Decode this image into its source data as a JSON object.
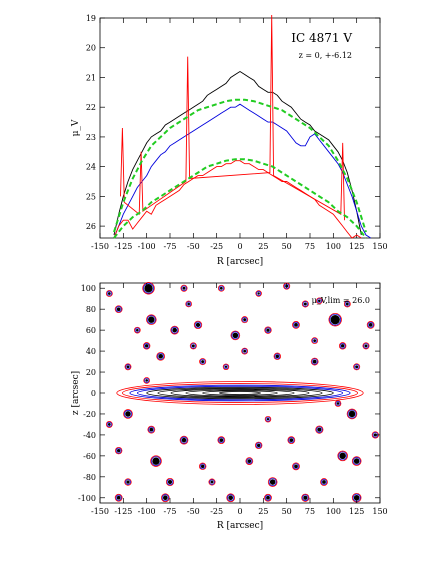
{
  "chart_data": [
    {
      "type": "line",
      "title": "IC 4871 V",
      "annotation": "z = 0, +-6.12",
      "xlabel": "R [arcsec]",
      "ylabel": "μ_V",
      "xlim": [
        -150,
        150
      ],
      "ylim": [
        26.4,
        19
      ],
      "y_inverted": true,
      "x_ticks": [
        -150,
        -125,
        -100,
        -75,
        -50,
        -25,
        0,
        25,
        50,
        75,
        100,
        125,
        150
      ],
      "y_ticks": [
        19,
        20,
        21,
        22,
        23,
        24,
        25,
        26
      ],
      "series": [
        {
          "color": "#000000",
          "x": [
            -135,
            -130,
            -125,
            -120,
            -115,
            -110,
            -105,
            -100,
            -95,
            -90,
            -85,
            -80,
            -75,
            -70,
            -65,
            -60,
            -55,
            -50,
            -45,
            -40,
            -35,
            -30,
            -25,
            -20,
            -15,
            -10,
            -5,
            0,
            5,
            10,
            15,
            20,
            25,
            30,
            35,
            40,
            45,
            50,
            55,
            60,
            65,
            70,
            75,
            80,
            85,
            90,
            95,
            100,
            105,
            110,
            115,
            120,
            125,
            130
          ],
          "y": [
            26.3,
            25.6,
            25.0,
            24.5,
            24.1,
            23.8,
            23.5,
            23.2,
            23.0,
            22.9,
            22.8,
            22.6,
            22.5,
            22.4,
            22.3,
            22.2,
            22.1,
            22.0,
            21.9,
            21.8,
            21.6,
            21.5,
            21.4,
            21.3,
            21.2,
            21.0,
            20.9,
            20.8,
            20.9,
            21.0,
            21.1,
            21.3,
            21.4,
            21.5,
            21.5,
            21.6,
            21.8,
            21.9,
            22.0,
            22.2,
            22.4,
            22.5,
            22.6,
            22.8,
            22.9,
            23.0,
            23.1,
            23.3,
            23.5,
            23.8,
            24.2,
            24.8,
            25.5,
            26.3
          ]
        },
        {
          "color": "#0000dd",
          "x": [
            -135,
            -130,
            -125,
            -120,
            -115,
            -110,
            -105,
            -100,
            -95,
            -90,
            -85,
            -80,
            -75,
            -70,
            -65,
            -60,
            -55,
            -50,
            -45,
            -40,
            -35,
            -30,
            -25,
            -20,
            -15,
            -10,
            -5,
            0,
            5,
            10,
            15,
            20,
            25,
            30,
            35,
            40,
            45,
            50,
            55,
            60,
            65,
            70,
            75,
            80,
            85,
            90,
            95,
            100,
            105,
            110,
            115,
            120,
            125,
            130,
            135,
            140
          ],
          "y": [
            26.4,
            26.0,
            25.6,
            25.3,
            25.0,
            24.7,
            24.5,
            24.3,
            24.0,
            23.8,
            23.6,
            23.5,
            23.3,
            23.2,
            23.1,
            23.0,
            22.9,
            22.8,
            22.7,
            22.6,
            22.5,
            22.4,
            22.3,
            22.2,
            22.1,
            22.0,
            22.0,
            21.9,
            22.0,
            22.1,
            22.2,
            22.3,
            22.4,
            22.5,
            22.5,
            22.6,
            22.7,
            22.8,
            23.0,
            23.2,
            23.3,
            23.3,
            23.0,
            22.9,
            23.1,
            23.3,
            23.5,
            23.7,
            23.9,
            24.2,
            24.6,
            25.0,
            25.5,
            26.0,
            26.3,
            26.4
          ]
        },
        {
          "color": "#ff0000",
          "x": [
            -135,
            -130,
            -125,
            -120,
            -115,
            -110,
            -105,
            -100,
            -95,
            -90,
            -85,
            -80,
            -75,
            -70,
            -65,
            -60,
            -55,
            -50,
            -45,
            -40,
            -35,
            -30,
            -25,
            -20,
            -15,
            -10,
            -5,
            0,
            5,
            10,
            15,
            20,
            25,
            30,
            35,
            40,
            45,
            50,
            55,
            60,
            65,
            70,
            75,
            80,
            85,
            90,
            95,
            100,
            105,
            110,
            115,
            120,
            125,
            130
          ],
          "y": [
            26.4,
            26.0,
            25.8,
            25.8,
            26.1,
            25.9,
            25.7,
            25.5,
            25.6,
            25.3,
            25.2,
            25.1,
            25.0,
            24.9,
            24.8,
            24.6,
            24.5,
            24.4,
            24.3,
            24.3,
            24.2,
            24.1,
            24.0,
            24.0,
            23.9,
            23.9,
            23.8,
            23.8,
            23.9,
            23.9,
            24.0,
            24.1,
            24.1,
            24.2,
            24.3,
            24.4,
            24.5,
            24.5,
            24.6,
            24.7,
            24.8,
            24.9,
            25.0,
            25.1,
            25.3,
            25.4,
            25.5,
            25.6,
            25.8,
            26.0,
            26.2,
            26.4,
            26.3,
            26.4
          ]
        },
        {
          "color": "#ff0000",
          "x": [
            -128,
            -126,
            -124,
            -108,
            -106,
            -104,
            -58,
            -56,
            -54,
            32,
            34,
            36,
            108,
            110,
            112
          ],
          "y": [
            25.0,
            22.7,
            25.2,
            25.6,
            23.5,
            25.5,
            24.5,
            20.3,
            24.4,
            24.2,
            18.9,
            24.3,
            25.6,
            23.2,
            25.8
          ]
        },
        {
          "color": "#22cc22",
          "dashed": true,
          "x": [
            -135,
            -125,
            -115,
            -105,
            -95,
            -85,
            -75,
            -65,
            -55,
            -45,
            -35,
            -25,
            -15,
            -5,
            0,
            5,
            15,
            25,
            35,
            45,
            55,
            65,
            75,
            85,
            95,
            105,
            115,
            125,
            135
          ],
          "y": [
            26.2,
            25.2,
            24.4,
            23.8,
            23.3,
            23.0,
            22.7,
            22.5,
            22.3,
            22.1,
            22.0,
            21.9,
            21.8,
            21.75,
            21.75,
            21.75,
            21.8,
            21.9,
            22.0,
            22.1,
            22.3,
            22.5,
            22.7,
            23.0,
            23.3,
            23.8,
            24.4,
            25.2,
            26.2
          ]
        },
        {
          "color": "#22cc22",
          "dashed": true,
          "x": [
            -135,
            -125,
            -115,
            -105,
            -95,
            -85,
            -75,
            -65,
            -55,
            -45,
            -35,
            -25,
            -15,
            -5,
            0,
            5,
            15,
            25,
            35,
            45,
            55,
            65,
            75,
            85,
            95,
            105,
            115,
            125,
            135
          ],
          "y": [
            26.4,
            26.0,
            25.7,
            25.5,
            25.2,
            25.0,
            24.8,
            24.6,
            24.4,
            24.2,
            24.0,
            23.9,
            23.8,
            23.75,
            23.75,
            23.75,
            23.8,
            23.9,
            24.0,
            24.2,
            24.4,
            24.6,
            24.8,
            25.0,
            25.2,
            25.5,
            25.7,
            26.0,
            26.4
          ]
        }
      ]
    },
    {
      "type": "contour",
      "annotation": "μ_V,lim = 26.0",
      "xlabel": "R [arcsec]",
      "ylabel": "z [arcsec]",
      "xlim": [
        -150,
        150
      ],
      "ylim": [
        -105,
        105
      ],
      "x_ticks": [
        -150,
        -125,
        -100,
        -75,
        -50,
        -25,
        0,
        25,
        50,
        75,
        100,
        125,
        150
      ],
      "y_ticks": [
        -100,
        -80,
        -60,
        -40,
        -20,
        0,
        20,
        40,
        60,
        80,
        100
      ],
      "disk_contours": [
        {
          "color": "#ff0000",
          "half_length": 132,
          "half_height": 11
        },
        {
          "color": "#ff0000",
          "half_length": 126,
          "half_height": 9
        },
        {
          "color": "#0000dd",
          "half_length": 118,
          "half_height": 7.5
        },
        {
          "color": "#0000dd",
          "half_length": 110,
          "half_height": 6.5
        },
        {
          "color": "#000000",
          "half_length": 100,
          "half_height": 5.5
        },
        {
          "color": "#000000",
          "half_length": 88,
          "half_height": 4.6
        },
        {
          "color": "#000000",
          "half_length": 74,
          "half_height": 3.8
        },
        {
          "color": "#000000",
          "half_length": 58,
          "half_height": 3.0
        },
        {
          "color": "#000000",
          "half_length": 40,
          "half_height": 2.2
        },
        {
          "color": "#000000",
          "half_length": 22,
          "half_height": 1.4
        }
      ],
      "stars": [
        {
          "x": -98,
          "y": 100,
          "r": 4.5
        },
        {
          "x": 102,
          "y": 70,
          "r": 5
        },
        {
          "x": -95,
          "y": 70,
          "r": 3.5
        },
        {
          "x": -130,
          "y": 80,
          "r": 2
        },
        {
          "x": -140,
          "y": 95,
          "r": 1.5
        },
        {
          "x": -60,
          "y": 100,
          "r": 1.6
        },
        {
          "x": -55,
          "y": 85,
          "r": 1.4
        },
        {
          "x": -20,
          "y": 100,
          "r": 1.5
        },
        {
          "x": 20,
          "y": 95,
          "r": 1.3
        },
        {
          "x": 50,
          "y": 102,
          "r": 1.6
        },
        {
          "x": 85,
          "y": 88,
          "r": 1.4
        },
        {
          "x": 140,
          "y": 65,
          "r": 2
        },
        {
          "x": -70,
          "y": 60,
          "r": 2.5
        },
        {
          "x": -45,
          "y": 65,
          "r": 2.3
        },
        {
          "x": -100,
          "y": 45,
          "r": 1.8
        },
        {
          "x": 5,
          "y": 70,
          "r": 1.6
        },
        {
          "x": 30,
          "y": 60,
          "r": 1.8
        },
        {
          "x": 60,
          "y": 65,
          "r": 2
        },
        {
          "x": 110,
          "y": 45,
          "r": 1.8
        },
        {
          "x": -85,
          "y": 35,
          "r": 2.5
        },
        {
          "x": -40,
          "y": 30,
          "r": 1.6
        },
        {
          "x": 5,
          "y": 40,
          "r": 1.5
        },
        {
          "x": 40,
          "y": 35,
          "r": 1.8
        },
        {
          "x": 80,
          "y": 30,
          "r": 2
        },
        {
          "x": -5,
          "y": 55,
          "r": 3
        },
        {
          "x": -120,
          "y": 25,
          "r": 1.5
        },
        {
          "x": 125,
          "y": 25,
          "r": 1.6
        },
        {
          "x": -120,
          "y": -20,
          "r": 3
        },
        {
          "x": 120,
          "y": -20,
          "r": 3.5
        },
        {
          "x": -95,
          "y": -35,
          "r": 2
        },
        {
          "x": 85,
          "y": -35,
          "r": 2.2
        },
        {
          "x": -60,
          "y": -45,
          "r": 2.5
        },
        {
          "x": -20,
          "y": -45,
          "r": 2
        },
        {
          "x": 20,
          "y": -50,
          "r": 1.8
        },
        {
          "x": 55,
          "y": -45,
          "r": 2
        },
        {
          "x": -130,
          "y": -55,
          "r": 1.8
        },
        {
          "x": -90,
          "y": -65,
          "r": 4
        },
        {
          "x": -40,
          "y": -70,
          "r": 1.8
        },
        {
          "x": 10,
          "y": -65,
          "r": 2
        },
        {
          "x": 60,
          "y": -70,
          "r": 2
        },
        {
          "x": 110,
          "y": -60,
          "r": 3.5
        },
        {
          "x": 125,
          "y": -65,
          "r": 3
        },
        {
          "x": -120,
          "y": -85,
          "r": 1.8
        },
        {
          "x": -75,
          "y": -85,
          "r": 2.2
        },
        {
          "x": 35,
          "y": -85,
          "r": 3
        },
        {
          "x": 90,
          "y": -85,
          "r": 2
        },
        {
          "x": -130,
          "y": -100,
          "r": 2
        },
        {
          "x": -80,
          "y": -100,
          "r": 2.5
        },
        {
          "x": -10,
          "y": -100,
          "r": 2.5
        },
        {
          "x": 30,
          "y": -100,
          "r": 2
        },
        {
          "x": 70,
          "y": -100,
          "r": 2.2
        },
        {
          "x": 125,
          "y": -100,
          "r": 3
        },
        {
          "x": -100,
          "y": 12,
          "r": 1.4
        },
        {
          "x": 105,
          "y": -10,
          "r": 1.4
        },
        {
          "x": -50,
          "y": 45,
          "r": 1.6
        },
        {
          "x": 80,
          "y": 50,
          "r": 1.5
        },
        {
          "x": 135,
          "y": 45,
          "r": 1.6
        },
        {
          "x": -140,
          "y": -30,
          "r": 1.5
        },
        {
          "x": 145,
          "y": -40,
          "r": 1.7
        },
        {
          "x": -15,
          "y": 25,
          "r": 1.3
        },
        {
          "x": 30,
          "y": -25,
          "r": 1.3
        },
        {
          "x": -30,
          "y": -85,
          "r": 1.6
        },
        {
          "x": 115,
          "y": 85,
          "r": 1.5
        },
        {
          "x": -110,
          "y": 60,
          "r": 1.4
        },
        {
          "x": 70,
          "y": 85,
          "r": 1.6
        }
      ]
    }
  ]
}
